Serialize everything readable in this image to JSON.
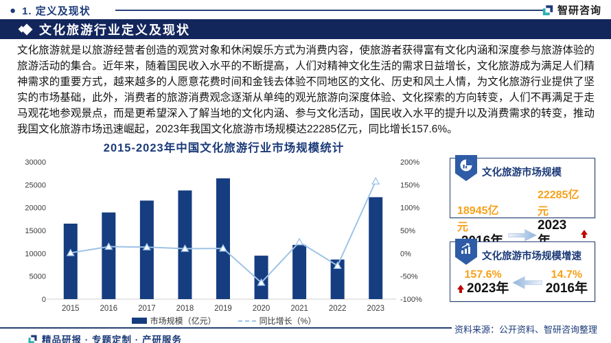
{
  "page": {
    "kicker_bullet": "●",
    "kicker_text": "1. 定义及现状",
    "brand_name": "智研咨询",
    "banner_title": "文化旅游行业定义及现状",
    "paragraph": "文化旅游就是以旅游经营者创造的观赏对象和休闲娱乐方式为消费内容，使旅游者获得富有文化内涵和深度参与旅游体验的旅游活动的集合。近年来，随着国民收入水平的不断提高，人们对精神文化生活的需求日益增长，文化旅游成为满足人们精神需求的重要方式，越来越多的人愿意花费时间和金钱去体验不同地区的文化、历史和风土人情，为文化旅游行业提供了坚实的市场基础，此外，消费者的旅游消费观念逐渐从单纯的观光旅游向深度体验、文化探索的方向转变，人们不再满足于走马观花地参观景点，而是更希望深入了解当地的文化内涵、参与文化活动，国民收入水平的提升以及消费需求的转变，推动我国文化旅游市场迅速崛起，2023年我国文化旅游市场规模达22285亿元，同比增长157.6%。",
    "source_note": "资料来源：公开资料、智研咨询整理",
    "footer_tagline": "精品研报 · 专题定制 · 产研服务"
  },
  "chart_data": {
    "type": "bar",
    "title": "2015-2023年中国文化旅游行业市场规模统计",
    "categories": [
      "2015",
      "2016",
      "2017",
      "2018",
      "2019",
      "2020",
      "2021",
      "2022",
      "2023"
    ],
    "series": [
      {
        "name": "市场规模（亿元）",
        "type": "bar",
        "axis": "left",
        "values": [
          16500,
          18945,
          21540,
          23760,
          26400,
          9500,
          11850,
          8650,
          22285
        ],
        "color": "#153d80"
      },
      {
        "name": "同比增长（%）",
        "type": "line",
        "axis": "right",
        "values": [
          1.0,
          14.7,
          13.7,
          10.3,
          10.9,
          -64.0,
          24.7,
          -27.0,
          157.6
        ],
        "color": "#9dc3e6"
      }
    ],
    "left_axis": {
      "min": 0,
      "max": 30000,
      "ticks": [
        0,
        5000,
        10000,
        15000,
        20000,
        25000,
        30000
      ]
    },
    "right_axis": {
      "min": -100,
      "max": 200,
      "ticks": [
        -100,
        -50,
        0,
        50,
        100,
        150,
        200
      ],
      "suffix": "%"
    },
    "grid": false,
    "legend_position": "bottom"
  },
  "infoboxes": [
    {
      "title": "文化旅游市场规模",
      "left_value": "18945亿元",
      "left_label": "2016年",
      "right_value": "22285亿元",
      "right_label": "2023年",
      "arrow_direction": "right"
    },
    {
      "title": "文化旅游市场规模增速",
      "left_value": "157.6%",
      "left_label": "2023年",
      "right_value": "14.7%",
      "right_label": "2016年",
      "arrow_direction": "left"
    }
  ],
  "colors": {
    "banner_bg": "#13265c",
    "navy_text": "#1b3a78",
    "bar": "#153d80",
    "line": "#9dc3e6",
    "orange": "#f7a11a",
    "red": "#c00000",
    "badge_blue": "#2e5ca6"
  }
}
